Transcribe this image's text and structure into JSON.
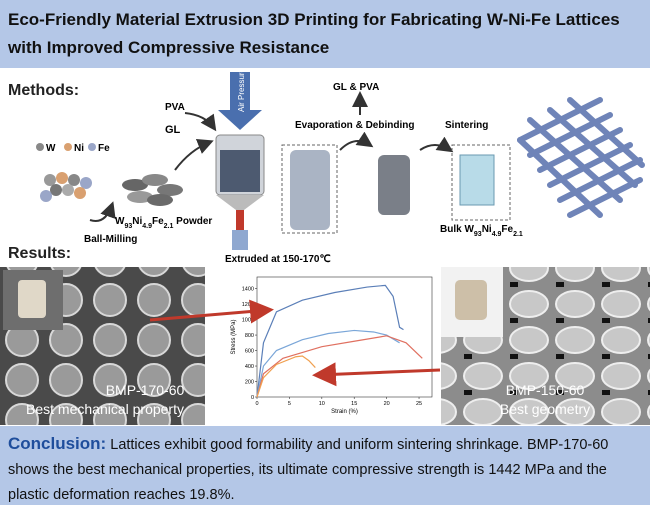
{
  "header": {
    "title": "Eco-Friendly Material Extrusion 3D Printing for Fabricating W-Ni-Fe Lattices with Improved Compressive Resistance"
  },
  "methods": {
    "heading": "Methods:",
    "legend": [
      "W",
      "Ni",
      "Fe"
    ],
    "labels": {
      "pva": "PVA",
      "gl": "GL",
      "air": "Air Pressure",
      "gl_pva": "GL & PVA",
      "evap": "Evaporation & Debinding",
      "sinter": "Sintering",
      "ball": "Ball-Milling",
      "extruded": "Extruded at 150-170℃"
    },
    "powder": [
      "W",
      "93",
      "Ni",
      "4.9",
      "Fe",
      "2.1",
      " Powder"
    ],
    "bulk": [
      "Bulk W",
      "93",
      "Ni",
      "4.9",
      "Fe",
      "2.1"
    ]
  },
  "results": {
    "heading": "Results:",
    "left": {
      "name": "BMP-170-60",
      "note": "Best mechanical property"
    },
    "right": {
      "name": "BMP-150-60",
      "note": "Best geometry"
    },
    "chart": {
      "type": "line",
      "x_label": "Strain (%)",
      "y_label": "Stress (MPa)",
      "xlim": [
        0,
        27
      ],
      "ylim": [
        0,
        1550
      ],
      "xticks": [
        0,
        5,
        10,
        15,
        20,
        25
      ],
      "yticks": [
        0,
        200,
        400,
        600,
        800,
        1000,
        1200,
        1400
      ],
      "series": [
        {
          "color": "#5b7fb8",
          "x": [
            0,
            1,
            3,
            7,
            12,
            17,
            19.8,
            21,
            22,
            22.6
          ],
          "values": [
            0,
            700,
            1100,
            1250,
            1350,
            1420,
            1442,
            1300,
            900,
            870
          ]
        },
        {
          "color": "#7aa6d8",
          "x": [
            0,
            1,
            3,
            7,
            11,
            15,
            18,
            20,
            22
          ],
          "values": [
            0,
            400,
            600,
            740,
            820,
            860,
            840,
            800,
            700
          ]
        },
        {
          "color": "#e07060",
          "x": [
            0,
            1,
            4,
            10,
            15,
            20,
            23,
            25.5
          ],
          "values": [
            0,
            300,
            500,
            650,
            720,
            790,
            700,
            500
          ]
        },
        {
          "color": "#f0a050",
          "x": [
            0,
            1,
            3,
            6,
            7,
            8,
            9
          ],
          "values": [
            0,
            250,
            420,
            520,
            530,
            470,
            380
          ]
        }
      ]
    }
  },
  "conclusion": {
    "label": "Conclusion:",
    "text": "Lattices exhibit good formability and uniform sintering shrinkage. BMP-170-60 shows the best mechanical properties, its ultimate compressive strength is 1442 MPa and the plastic deformation reaches 19.8%."
  }
}
